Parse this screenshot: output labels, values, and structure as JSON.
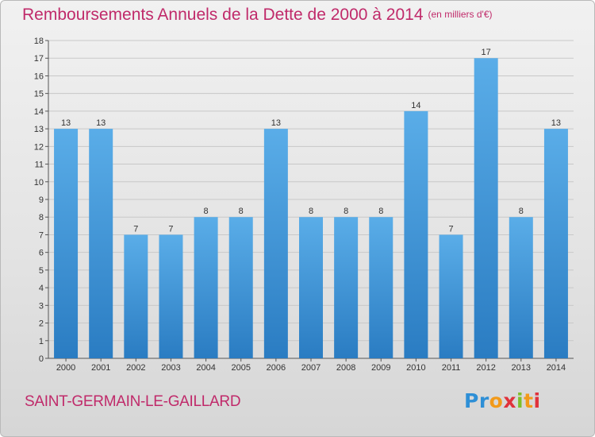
{
  "title": "Remboursements Annuels de la Dette de 2000 à 2014",
  "unit_note": "(en milliers d'€)",
  "commune": "SAINT-GERMAIN-LE-GAILLARD",
  "logo": {
    "text": "Proxiti",
    "colors": [
      "#2e8fd6",
      "#7fbf2a",
      "#f29a1a",
      "#e0323b"
    ]
  },
  "colors": {
    "title": "#c02a6a",
    "bar_top": "#5aade8",
    "bar_bottom": "#2a7cc2",
    "grid": "#c8c8c8"
  },
  "chart_data": {
    "type": "bar",
    "categories": [
      "2000",
      "2001",
      "2002",
      "2003",
      "2004",
      "2005",
      "2006",
      "2007",
      "2008",
      "2009",
      "2010",
      "2011",
      "2012",
      "2013",
      "2014"
    ],
    "values": [
      13,
      13,
      7,
      7,
      8,
      8,
      13,
      8,
      8,
      8,
      14,
      7,
      17,
      8,
      13
    ],
    "data_labels": [
      "13",
      "13",
      "7",
      "7",
      "8",
      "8",
      "13",
      "8",
      "8",
      "8",
      "14",
      "7",
      "17",
      "8",
      "13"
    ],
    "title": "Remboursements Annuels de la Dette de 2000 à 2014",
    "ylim": [
      0,
      18
    ],
    "yticks": [
      "0",
      "1",
      "2",
      "3",
      "4",
      "5",
      "6",
      "7",
      "8",
      "9",
      "10",
      "11",
      "12",
      "13",
      "14",
      "15",
      "16",
      "17",
      "18"
    ],
    "grid": true
  }
}
